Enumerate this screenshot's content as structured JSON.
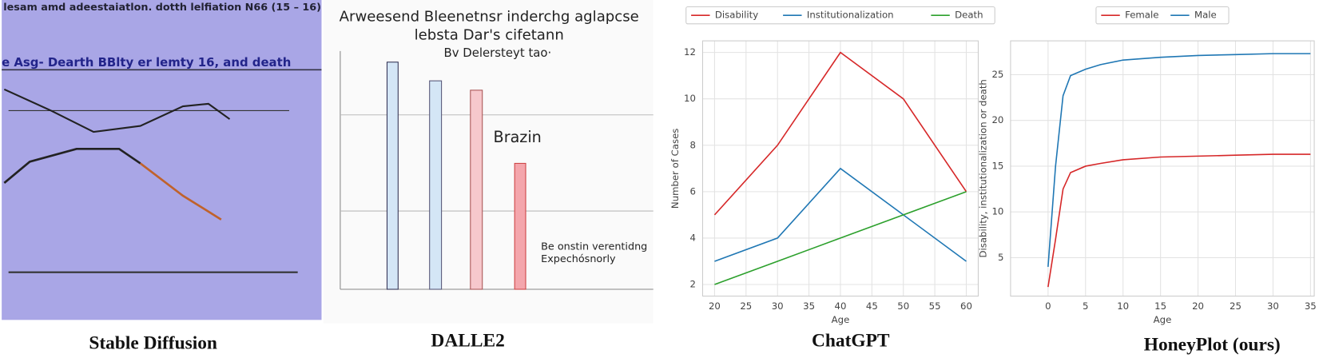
{
  "captions": [
    "Stable Diffusion",
    "DALLE2",
    "ChatGPT",
    "HoneyPlot (ours)"
  ],
  "images": [
    {
      "texts": [
        "lesam amd adeestaiatlon. dotth lelfiation N66 (15 – 16)",
        "e Asg- Dearth BBlty  er lemty 16, and death"
      ]
    },
    {
      "texts": [
        "Arweesend Bleenetnsr inderchg aglapcse",
        "lebsta Dar's cifetann",
        "Bv Delersteyt tao·",
        "Brazin",
        "Be onstin verentidng",
        "Expechósnorly"
      ]
    }
  ],
  "chart_data": [
    {
      "type": "line",
      "x": [
        20,
        30,
        40,
        50,
        60
      ],
      "series": [
        {
          "name": "Disability",
          "color": "#d62728",
          "values": [
            5,
            8,
            12,
            10,
            6
          ]
        },
        {
          "name": "Institutionalization",
          "color": "#1f77b4",
          "values": [
            3,
            4,
            7,
            5,
            3
          ]
        },
        {
          "name": "Death",
          "color": "#2ca02c",
          "values": [
            2,
            3,
            4,
            5,
            6
          ]
        }
      ],
      "xlim": [
        18.1,
        61.9
      ],
      "ylim": [
        1.5,
        12.5
      ],
      "xticks": [
        20,
        25,
        30,
        35,
        40,
        45,
        50,
        55,
        60
      ],
      "yticks": [
        2,
        4,
        6,
        8,
        10,
        12
      ],
      "xlabel": "Age",
      "ylabel": "Number of Cases",
      "grid": true,
      "legend": "upper center"
    },
    {
      "type": "line",
      "x": [
        0,
        1,
        2,
        3,
        5,
        7,
        10,
        15,
        20,
        25,
        30,
        35
      ],
      "series": [
        {
          "name": "Female",
          "color": "#d62728",
          "values": [
            1.8,
            7,
            12.5,
            14.3,
            15,
            15.3,
            15.7,
            16,
            16.1,
            16.2,
            16.3,
            16.3
          ]
        },
        {
          "name": "Male",
          "color": "#1f77b4",
          "values": [
            4,
            15,
            22.7,
            24.9,
            25.6,
            26.1,
            26.6,
            26.9,
            27.1,
            27.2,
            27.3,
            27.3
          ]
        }
      ],
      "xlim": [
        -5,
        35.5
      ],
      "ylim": [
        0.8,
        28.7
      ],
      "xticks": [
        0,
        5,
        10,
        15,
        20,
        25,
        30,
        35
      ],
      "yticks": [
        5,
        10,
        15,
        20,
        25
      ],
      "xlabel": "Age",
      "ylabel": "Disability, institutionalization or death",
      "grid": true,
      "legend": "upper center"
    }
  ]
}
